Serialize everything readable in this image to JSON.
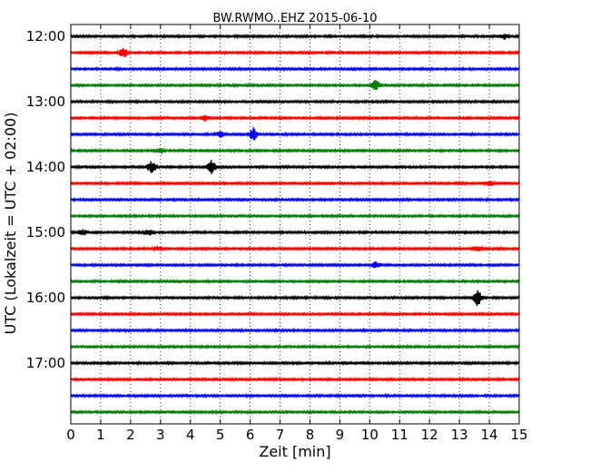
{
  "chart_data": {
    "type": "line",
    "title": "BW.RWMO..EHZ 2015-06-10",
    "xlabel": "Zeit  [min]",
    "ylabel": "UTC (Lokalzeit = UTC + 02:00)",
    "xlim": [
      0,
      15
    ],
    "xticks": [
      "0",
      "1",
      "2",
      "3",
      "4",
      "5",
      "6",
      "7",
      "8",
      "9",
      "10",
      "11",
      "12",
      "13",
      "14",
      "15"
    ],
    "yticks": [
      {
        "label": "12:00",
        "row": 0
      },
      {
        "label": "13:00",
        "row": 4
      },
      {
        "label": "14:00",
        "row": 8
      },
      {
        "label": "15:00",
        "row": 12
      },
      {
        "label": "16:00",
        "row": 16
      },
      {
        "label": "17:00",
        "row": 20
      }
    ],
    "grid": "vertical-dotted",
    "colors": [
      "#000000",
      "#ff0000",
      "#0000ff",
      "#008000"
    ],
    "series": [
      {
        "start": "12:00",
        "events": [
          {
            "t": 14.5,
            "amp": 1.0
          }
        ]
      },
      {
        "start": "12:15",
        "events": [
          {
            "t": 1.75,
            "amp": 2.2
          }
        ]
      },
      {
        "start": "12:30",
        "events": []
      },
      {
        "start": "12:45",
        "events": [
          {
            "t": 10.2,
            "amp": 2.0
          }
        ]
      },
      {
        "start": "13:00",
        "events": []
      },
      {
        "start": "13:15",
        "events": [
          {
            "t": 4.5,
            "amp": 1.0
          }
        ]
      },
      {
        "start": "13:30",
        "events": [
          {
            "t": 6.1,
            "amp": 2.3
          },
          {
            "t": 5.0,
            "amp": 1.0
          }
        ]
      },
      {
        "start": "13:45",
        "events": [
          {
            "t": 3.0,
            "amp": 1.0
          }
        ]
      },
      {
        "start": "14:00",
        "events": [
          {
            "t": 2.7,
            "amp": 2.4
          },
          {
            "t": 4.7,
            "amp": 3.0
          }
        ]
      },
      {
        "start": "14:15",
        "events": [
          {
            "t": 14.0,
            "amp": 1.0
          }
        ]
      },
      {
        "start": "14:30",
        "events": []
      },
      {
        "start": "14:45",
        "events": []
      },
      {
        "start": "15:00",
        "events": [
          {
            "t": 0.4,
            "amp": 1.2
          },
          {
            "t": 2.6,
            "amp": 1.2
          }
        ]
      },
      {
        "start": "15:15",
        "events": [
          {
            "t": 2.9,
            "amp": 0.8
          },
          {
            "t": 13.6,
            "amp": 0.8
          }
        ]
      },
      {
        "start": "15:30",
        "events": [
          {
            "t": 10.2,
            "amp": 1.2
          }
        ]
      },
      {
        "start": "15:45",
        "events": []
      },
      {
        "start": "16:00",
        "events": [
          {
            "t": 13.6,
            "amp": 3.2
          }
        ]
      },
      {
        "start": "16:15",
        "events": []
      },
      {
        "start": "16:30",
        "events": []
      },
      {
        "start": "16:45",
        "events": []
      },
      {
        "start": "17:00",
        "events": []
      },
      {
        "start": "17:15",
        "events": []
      },
      {
        "start": "17:30",
        "events": []
      },
      {
        "start": "17:45",
        "events": []
      }
    ]
  }
}
